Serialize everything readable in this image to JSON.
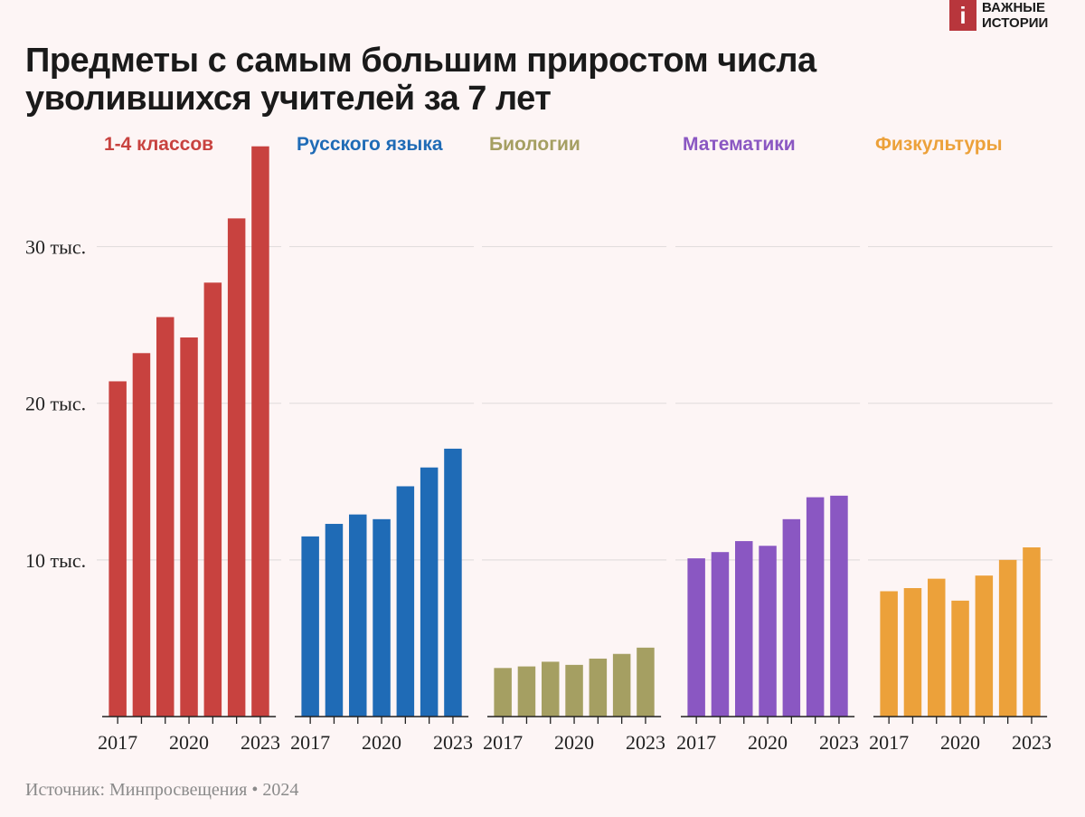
{
  "header": {
    "title": "Предметы с самым большим приростом числа\nуволившихся учителей за 7 лет"
  },
  "logo": {
    "mark": "i",
    "line1": "ВАЖНЫЕ",
    "line2": "ИСТОРИИ",
    "color": "#b8363c"
  },
  "footer": {
    "source": "Источник: Минпросвещения • 2024"
  },
  "chart_data": {
    "type": "bar",
    "title": "Предметы с самым большим приростом числа уволившихся учителей за 7 лет",
    "categories": [
      "2017",
      "2018",
      "2019",
      "2020",
      "2021",
      "2022",
      "2023"
    ],
    "x_tick_labels": [
      "2017",
      "2020",
      "2023"
    ],
    "y_ticks": [
      10000,
      20000,
      30000
    ],
    "y_tick_labels": [
      "10 тыс.",
      "20 тыс.",
      "30 тыс."
    ],
    "ylim": [
      0,
      36500
    ],
    "grid": true,
    "series": [
      {
        "name": "1-4 классов",
        "color": "#c8423f",
        "values": [
          21400,
          23200,
          25500,
          24200,
          27700,
          31800,
          36400
        ]
      },
      {
        "name": "Русского языка",
        "color": "#1f6bb6",
        "values": [
          11500,
          12300,
          12900,
          12600,
          14700,
          15900,
          17100
        ]
      },
      {
        "name": "Биологии",
        "color": "#a59f62",
        "values": [
          3100,
          3200,
          3500,
          3300,
          3700,
          4000,
          4400
        ]
      },
      {
        "name": "Математики",
        "color": "#8a57c2",
        "values": [
          10100,
          10500,
          11200,
          10900,
          12600,
          14000,
          14100
        ]
      },
      {
        "name": "Физкультуры",
        "color": "#eca13a",
        "values": [
          8000,
          8200,
          8800,
          7400,
          9000,
          10000,
          10800
        ]
      }
    ]
  }
}
